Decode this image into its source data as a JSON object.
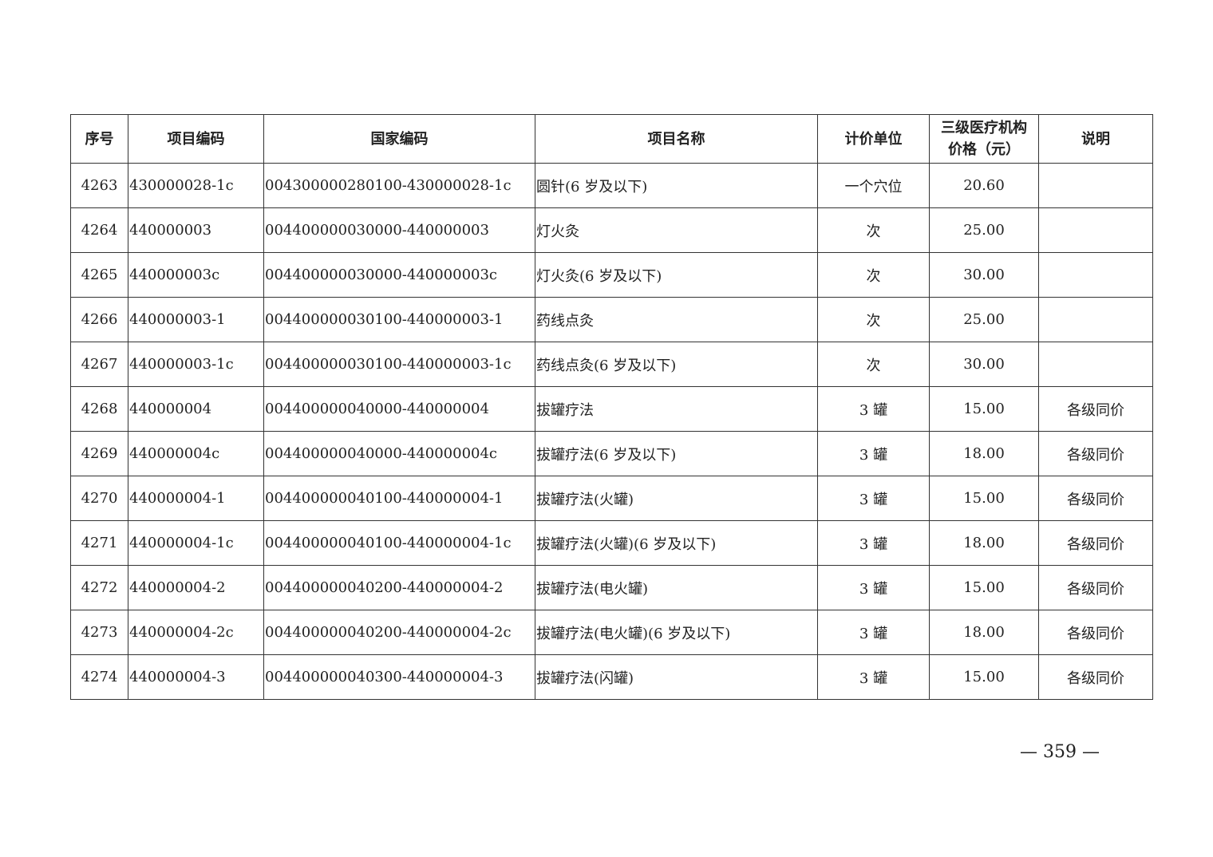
{
  "table": {
    "headers": [
      "序号",
      "项目编码",
      "国家编码",
      "项目名称",
      "计价单位",
      "三级医疗机构价格（元）",
      "说明"
    ],
    "header_price_line1": "三级医疗机构",
    "header_price_line2": "价格（元）",
    "rows": [
      [
        "4263",
        "430000028-1c",
        "004300000280100-430000028-1c",
        "圆针(6 岁及以下)",
        "一个穴位",
        "20.60",
        ""
      ],
      [
        "4264",
        "440000003",
        "004400000030000-440000003",
        "灯火灸",
        "次",
        "25.00",
        ""
      ],
      [
        "4265",
        "440000003c",
        "004400000030000-440000003c",
        "灯火灸(6 岁及以下)",
        "次",
        "30.00",
        ""
      ],
      [
        "4266",
        "440000003-1",
        "004400000030100-440000003-1",
        "药线点灸",
        "次",
        "25.00",
        ""
      ],
      [
        "4267",
        "440000003-1c",
        "004400000030100-440000003-1c",
        "药线点灸(6 岁及以下)",
        "次",
        "30.00",
        ""
      ],
      [
        "4268",
        "440000004",
        "004400000040000-440000004",
        "拔罐疗法",
        "3 罐",
        "15.00",
        "各级同价"
      ],
      [
        "4269",
        "440000004c",
        "004400000040000-440000004c",
        "拔罐疗法(6 岁及以下)",
        "3 罐",
        "18.00",
        "各级同价"
      ],
      [
        "4270",
        "440000004-1",
        "004400000040100-440000004-1",
        "拔罐疗法(火罐)",
        "3 罐",
        "15.00",
        "各级同价"
      ],
      [
        "4271",
        "440000004-1c",
        "004400000040100-440000004-1c",
        "拔罐疗法(火罐)(6 岁及以下)",
        "3 罐",
        "18.00",
        "各级同价"
      ],
      [
        "4272",
        "440000004-2",
        "004400000040200-440000004-2",
        "拔罐疗法(电火罐)",
        "3 罐",
        "15.00",
        "各级同价"
      ],
      [
        "4273",
        "440000004-2c",
        "004400000040200-440000004-2c",
        "拔罐疗法(电火罐)(6 岁及以下)",
        "3 罐",
        "18.00",
        "各级同价"
      ],
      [
        "4274",
        "440000004-3",
        "004400000040300-440000004-3",
        "拔罐疗法(闪罐)",
        "3 罐",
        "15.00",
        "各级同价"
      ]
    ]
  },
  "page_number": "— 359 —"
}
